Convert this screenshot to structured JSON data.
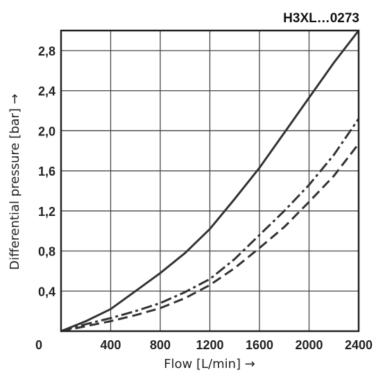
{
  "chart_data": {
    "type": "line",
    "title": "H3XL…0273",
    "xlabel": "Flow [L/min] →",
    "ylabel": "Differential pressure [bar] →",
    "xlim": [
      0,
      2400
    ],
    "ylim": [
      0,
      3.0
    ],
    "grid": true,
    "x_ticks": [
      "0",
      "400",
      "800",
      "1200",
      "1600",
      "2000",
      "2400"
    ],
    "y_ticks": [
      "0,4",
      "0,8",
      "1,2",
      "1,6",
      "2,0",
      "2,4",
      "2,8"
    ],
    "colors": {
      "line": "#333333",
      "grid": "#444444",
      "frame": "#222222"
    },
    "series": [
      {
        "style": "solid",
        "x": [
          0,
          200,
          400,
          600,
          800,
          1000,
          1200,
          1400,
          1600,
          1800,
          2000,
          2200,
          2400
        ],
        "y": [
          0,
          0.1,
          0.22,
          0.4,
          0.58,
          0.78,
          1.02,
          1.32,
          1.63,
          1.98,
          2.33,
          2.68,
          3.0
        ]
      },
      {
        "style": "dashdot",
        "x": [
          0,
          200,
          400,
          600,
          800,
          1000,
          1200,
          1400,
          1600,
          1800,
          2000,
          2200,
          2400
        ],
        "y": [
          0,
          0.07,
          0.13,
          0.2,
          0.28,
          0.39,
          0.52,
          0.72,
          0.96,
          1.2,
          1.46,
          1.76,
          2.12
        ]
      },
      {
        "style": "dashed",
        "x": [
          0,
          200,
          400,
          600,
          800,
          1000,
          1200,
          1400,
          1600,
          1800,
          2000,
          2200,
          2400
        ],
        "y": [
          0,
          0.05,
          0.1,
          0.16,
          0.23,
          0.33,
          0.46,
          0.63,
          0.83,
          1.04,
          1.29,
          1.55,
          1.87
        ]
      }
    ]
  }
}
